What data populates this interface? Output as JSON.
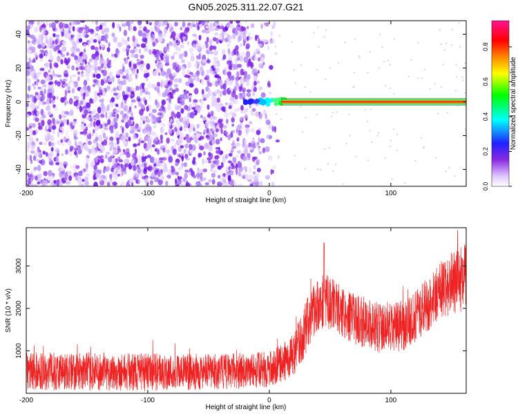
{
  "title": "GN05.2025.311.22.07.G21",
  "colors": {
    "snr_line": "#ee2222",
    "axis": "#000000",
    "cmap": [
      "#ffffff",
      "#e0c8ff",
      "#8a2be2",
      "#2020ff",
      "#00ffff",
      "#00ff00",
      "#ffff00",
      "#ff8800",
      "#ff0000",
      "#ff1493"
    ]
  },
  "chart_data": [
    {
      "type": "heatmap",
      "name": "spectrogram",
      "title": "GN05.2025.311.22.07.G21",
      "xlabel": "Height of straight line (km)",
      "ylabel": "Frequency (Hz)",
      "xlim": [
        -200,
        162
      ],
      "ylim": [
        -50,
        48
      ],
      "xticks": [
        -200,
        -100,
        0,
        100
      ],
      "xtick_labels": [
        "-200",
        "-100",
        "0",
        "100"
      ],
      "yticks": [
        40,
        20,
        0,
        -20,
        -40
      ],
      "ytick_labels": [
        "40",
        "20",
        "0",
        "-20",
        "-40"
      ],
      "colorbar": {
        "label": "Normalized spectral amplitude",
        "range": [
          0.0,
          0.95
        ],
        "ticks": [
          0.0,
          0.2,
          0.4,
          0.6,
          0.8
        ],
        "tick_labels": [
          "0.0",
          "0.2",
          "0.4",
          "0.6",
          "0.8"
        ]
      },
      "features": {
        "noise_region_x": [
          -200,
          10
        ],
        "signal_line_x": [
          -20,
          162
        ],
        "signal_frequency_hz": 0,
        "signal_amplitude": 0.9
      }
    },
    {
      "type": "line",
      "name": "snr",
      "xlabel": "Height of straight line (km)",
      "ylabel": "SNR (10 * v/v)",
      "xlim": [
        -200,
        162
      ],
      "ylim": [
        0,
        3900
      ],
      "xticks": [
        -200,
        -100,
        0,
        100
      ],
      "xtick_labels": [
        "-200",
        "-100",
        "0",
        "100"
      ],
      "yticks": [
        1000,
        2000,
        3000
      ],
      "ytick_labels": [
        "1000",
        "2000",
        "3000"
      ],
      "envelope": {
        "x": [
          -200,
          -150,
          -100,
          -50,
          0,
          10,
          20,
          28,
          35,
          45,
          55,
          65,
          80,
          90,
          100,
          110,
          120,
          130,
          140,
          150,
          162
        ],
        "mean": [
          520,
          510,
          500,
          500,
          560,
          700,
          900,
          1400,
          1900,
          2200,
          2050,
          1800,
          1650,
          1550,
          1500,
          1600,
          1800,
          2100,
          2400,
          2600,
          2750
        ],
        "amp": [
          450,
          450,
          450,
          420,
          420,
          450,
          500,
          600,
          650,
          650,
          600,
          600,
          600,
          600,
          600,
          600,
          600,
          650,
          700,
          750,
          800
        ]
      },
      "peaks": {
        "x": [
          45,
          155
        ],
        "values": [
          3600,
          3900
        ]
      }
    }
  ]
}
